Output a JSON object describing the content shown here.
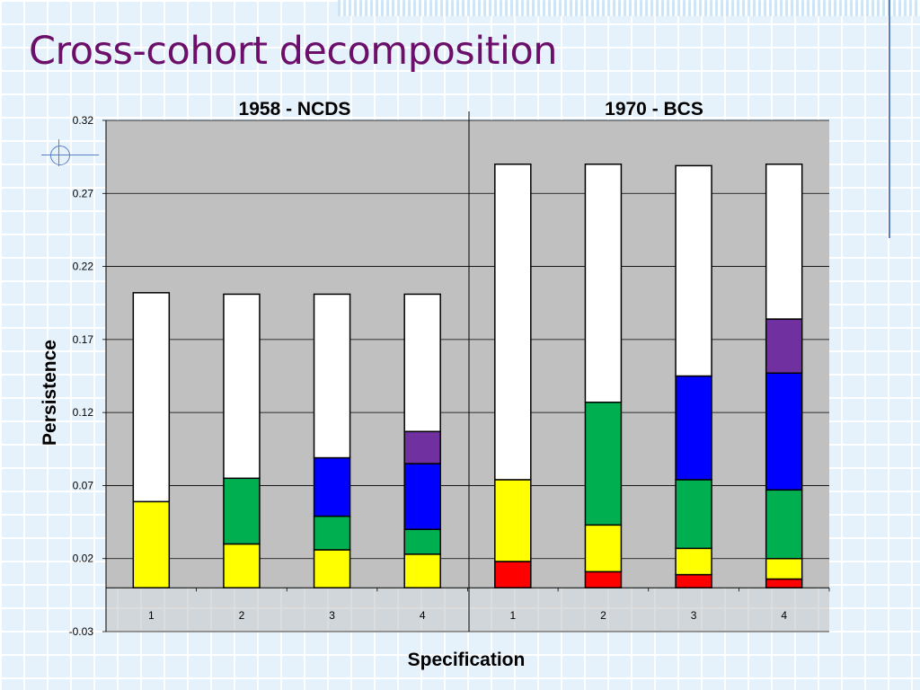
{
  "slide": {
    "title": "Cross-cohort decomposition"
  },
  "chart_data": {
    "type": "bar",
    "stacked": true,
    "xlabel": "Specification",
    "ylabel": "Persistence",
    "ylim": [
      -0.03,
      0.32
    ],
    "yticks": [
      "0.32",
      "0.27",
      "0.22",
      "0.17",
      "0.12",
      "0.07",
      "0.02",
      "-0.03"
    ],
    "grid": true,
    "legend": "none",
    "panels": [
      {
        "title": "1958 - NCDS",
        "categories": [
          "1",
          "2",
          "3",
          "4"
        ],
        "stacks": [
          [
            {
              "color": "#ffff00",
              "value": 0.059
            },
            {
              "color": "#ffffff",
              "value": 0.143
            }
          ],
          [
            {
              "color": "#ffff00",
              "value": 0.03
            },
            {
              "color": "#00b050",
              "value": 0.045
            },
            {
              "color": "#ffffff",
              "value": 0.126
            }
          ],
          [
            {
              "color": "#ffff00",
              "value": 0.026
            },
            {
              "color": "#00b050",
              "value": 0.023
            },
            {
              "color": "#0000ff",
              "value": 0.04
            },
            {
              "color": "#ffffff",
              "value": 0.112
            }
          ],
          [
            {
              "color": "#ffff00",
              "value": 0.023
            },
            {
              "color": "#00b050",
              "value": 0.017
            },
            {
              "color": "#0000ff",
              "value": 0.045
            },
            {
              "color": "#7030a0",
              "value": 0.022
            },
            {
              "color": "#ffffff",
              "value": 0.094
            }
          ]
        ]
      },
      {
        "title": "1970 - BCS",
        "categories": [
          "1",
          "2",
          "3",
          "4"
        ],
        "stacks": [
          [
            {
              "color": "#ff0000",
              "value": 0.018
            },
            {
              "color": "#ffff00",
              "value": 0.056
            },
            {
              "color": "#ffffff",
              "value": 0.216
            }
          ],
          [
            {
              "color": "#ff0000",
              "value": 0.011
            },
            {
              "color": "#ffff00",
              "value": 0.032
            },
            {
              "color": "#00b050",
              "value": 0.084
            },
            {
              "color": "#ffffff",
              "value": 0.163
            }
          ],
          [
            {
              "color": "#ff0000",
              "value": 0.009
            },
            {
              "color": "#ffff00",
              "value": 0.018
            },
            {
              "color": "#00b050",
              "value": 0.047
            },
            {
              "color": "#0000ff",
              "value": 0.071
            },
            {
              "color": "#ffffff",
              "value": 0.144
            }
          ],
          [
            {
              "color": "#ff0000",
              "value": 0.006
            },
            {
              "color": "#ffff00",
              "value": 0.014
            },
            {
              "color": "#00b050",
              "value": 0.047
            },
            {
              "color": "#0000ff",
              "value": 0.08
            },
            {
              "color": "#7030a0",
              "value": 0.037
            },
            {
              "color": "#ffffff",
              "value": 0.106
            }
          ]
        ]
      }
    ]
  }
}
